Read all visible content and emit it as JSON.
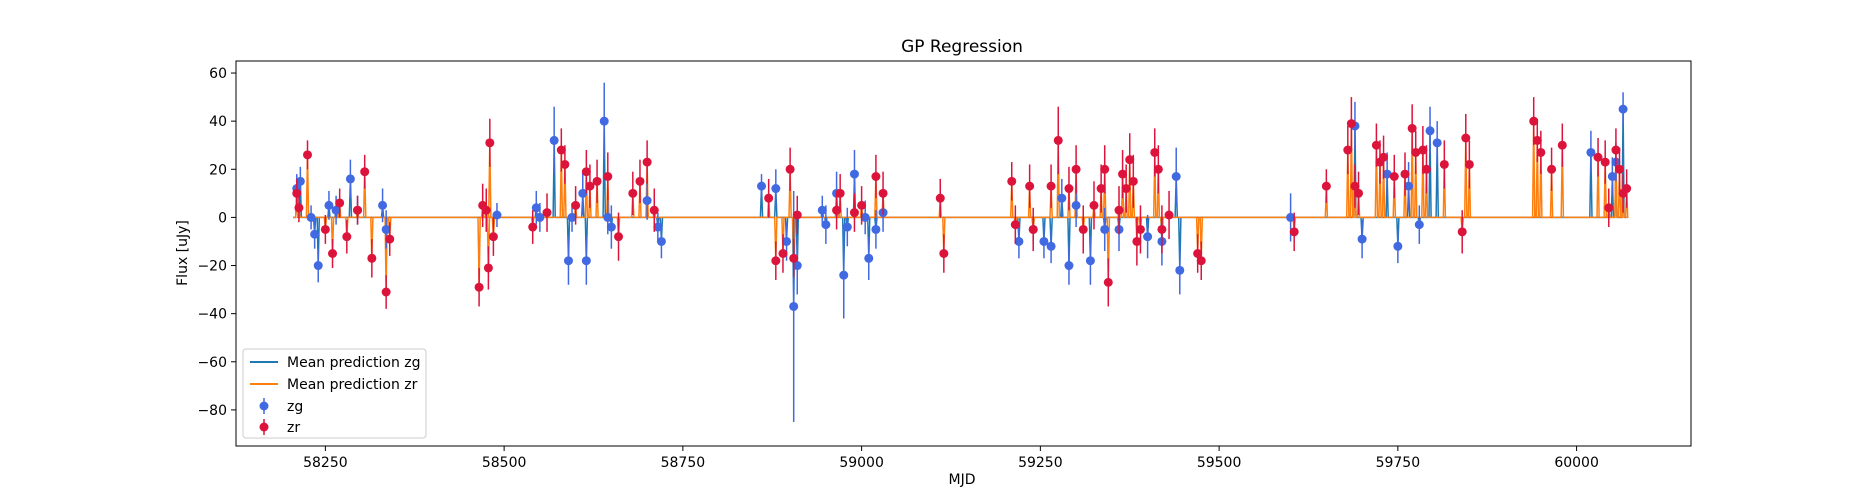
{
  "chart_data": {
    "type": "scatter",
    "title": "GP Regression",
    "xlabel": "MJD",
    "ylabel": "Flux [uJy]",
    "xlim": [
      58125,
      60160
    ],
    "ylim": [
      -95,
      65
    ],
    "xticks": [
      58250,
      58500,
      58750,
      59000,
      59250,
      59500,
      59750,
      60000
    ],
    "yticks": [
      -80,
      -60,
      -40,
      -20,
      0,
      20,
      40,
      60
    ],
    "legend_position": "lower-left",
    "legend": [
      "Mean prediction zg",
      "Mean prediction zr",
      "zg",
      "zr"
    ],
    "colors": {
      "zg_line": "#1f77b4",
      "zr_line": "#ff7f0e",
      "zg_points": "#4169e1",
      "zr_points": "#dc143c"
    },
    "series": [
      {
        "name": "zg",
        "kind": "errorbar",
        "x": [
          58210,
          58215,
          58230,
          58235,
          58240,
          58255,
          58265,
          58285,
          58295,
          58330,
          58335,
          58490,
          58545,
          58550,
          58570,
          58590,
          58595,
          58610,
          58615,
          58640,
          58645,
          58650,
          58700,
          58715,
          58720,
          58860,
          58880,
          58895,
          58905,
          58910,
          58945,
          58950,
          58965,
          58975,
          58980,
          58990,
          59005,
          59010,
          59020,
          59030,
          59220,
          59240,
          59255,
          59265,
          59280,
          59290,
          59300,
          59320,
          59340,
          59360,
          59400,
          59420,
          59440,
          59445,
          59600,
          59690,
          59700,
          59735,
          59750,
          59765,
          59780,
          59795,
          59805,
          60020,
          60050,
          60055,
          60065
        ],
        "y": [
          12,
          15,
          0,
          -7,
          -20,
          5,
          3,
          16,
          3,
          5,
          -5,
          1,
          4,
          0,
          32,
          -18,
          0,
          10,
          -18,
          40,
          0,
          -4,
          7,
          -4,
          -10,
          13,
          12,
          -10,
          -37,
          -20,
          3,
          -3,
          10,
          -24,
          -4,
          18,
          0,
          -17,
          -5,
          2,
          -10,
          -5,
          -10,
          -12,
          8,
          -20,
          5,
          -18,
          -5,
          -5,
          -8,
          -10,
          17,
          -22,
          0,
          38,
          -9,
          18,
          -12,
          13,
          -3,
          36,
          31,
          27,
          17,
          23,
          45
        ],
        "err": [
          6,
          6,
          5,
          6,
          7,
          6,
          6,
          8,
          6,
          7,
          8,
          5,
          7,
          6,
          14,
          10,
          6,
          9,
          10,
          16,
          7,
          9,
          8,
          6,
          7,
          5,
          8,
          8,
          48,
          12,
          6,
          8,
          9,
          18,
          8,
          10,
          7,
          9,
          8,
          8,
          7,
          6,
          7,
          7,
          8,
          8,
          9,
          10,
          9,
          9,
          9,
          10,
          12,
          10,
          10,
          10,
          8,
          9,
          7,
          10,
          8,
          10,
          9,
          9,
          8,
          8,
          7
        ]
      },
      {
        "name": "zr",
        "kind": "errorbar",
        "x": [
          58210,
          58213,
          58225,
          58250,
          58260,
          58270,
          58280,
          58295,
          58305,
          58315,
          58335,
          58340,
          58465,
          58470,
          58475,
          58478,
          58480,
          58485,
          58540,
          58560,
          58580,
          58585,
          58600,
          58615,
          58620,
          58630,
          58645,
          58660,
          58680,
          58690,
          58700,
          58710,
          58870,
          58880,
          58890,
          58900,
          58905,
          58910,
          58965,
          58970,
          58990,
          59000,
          59020,
          59030,
          59110,
          59115,
          59210,
          59215,
          59235,
          59240,
          59265,
          59275,
          59290,
          59300,
          59310,
          59325,
          59335,
          59340,
          59345,
          59360,
          59365,
          59370,
          59375,
          59380,
          59385,
          59390,
          59410,
          59415,
          59420,
          59430,
          59470,
          59475,
          59605,
          59650,
          59680,
          59685,
          59690,
          59695,
          59720,
          59725,
          59730,
          59745,
          59760,
          59770,
          59775,
          59785,
          59790,
          59815,
          59840,
          59845,
          59850,
          59940,
          59945,
          59950,
          59965,
          59980,
          60030,
          60040,
          60045,
          60055,
          60060,
          60065,
          60070
        ],
        "y": [
          10,
          4,
          26,
          -5,
          -15,
          6,
          -8,
          3,
          19,
          -17,
          -31,
          -9,
          -29,
          5,
          3,
          -21,
          31,
          -8,
          -4,
          2,
          28,
          22,
          5,
          19,
          13,
          15,
          17,
          -8,
          10,
          15,
          23,
          3,
          8,
          -18,
          -15,
          20,
          -17,
          1,
          3,
          10,
          2,
          5,
          17,
          10,
          8,
          -15,
          15,
          -3,
          13,
          -5,
          13,
          32,
          12,
          20,
          -5,
          5,
          12,
          20,
          -27,
          3,
          18,
          12,
          24,
          15,
          -10,
          -5,
          27,
          20,
          -5,
          1,
          -15,
          -18,
          -6,
          13,
          28,
          39,
          13,
          10,
          30,
          23,
          25,
          17,
          18,
          37,
          27,
          28,
          20,
          22,
          -6,
          33,
          22,
          40,
          32,
          27,
          20,
          30,
          25,
          23,
          4,
          28,
          20,
          10,
          12
        ],
        "err": [
          6,
          6,
          6,
          6,
          6,
          6,
          7,
          6,
          7,
          8,
          7,
          7,
          8,
          9,
          9,
          9,
          10,
          8,
          7,
          8,
          9,
          8,
          8,
          9,
          9,
          9,
          10,
          10,
          9,
          9,
          9,
          9,
          8,
          8,
          8,
          9,
          8,
          8,
          8,
          8,
          8,
          8,
          9,
          9,
          8,
          8,
          8,
          8,
          9,
          9,
          9,
          14,
          9,
          10,
          10,
          10,
          10,
          10,
          10,
          10,
          10,
          10,
          11,
          11,
          10,
          10,
          10,
          10,
          10,
          10,
          8,
          8,
          8,
          7,
          10,
          11,
          9,
          9,
          9,
          9,
          9,
          9,
          9,
          10,
          9,
          10,
          10,
          10,
          9,
          10,
          10,
          10,
          9,
          9,
          9,
          9,
          8,
          9,
          8,
          9,
          9,
          8,
          8
        ]
      },
      {
        "name": "Mean prediction zg",
        "kind": "line",
        "baseline": 0,
        "x_range": [
          58205,
          60070
        ]
      },
      {
        "name": "Mean prediction zr",
        "kind": "line",
        "baseline": 0,
        "x_range": [
          58205,
          60070
        ]
      }
    ]
  }
}
